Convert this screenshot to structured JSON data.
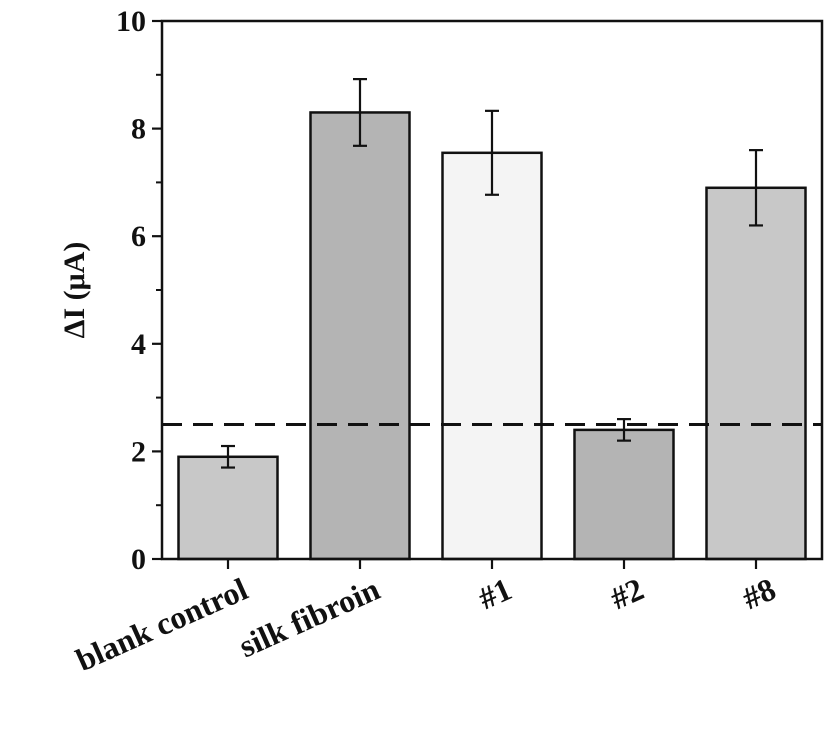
{
  "chart_data": {
    "type": "bar",
    "title": "",
    "xlabel": "",
    "ylabel": "ΔI (μA)",
    "ylim": [
      0,
      10
    ],
    "yticks": [
      0,
      2,
      4,
      6,
      8,
      10
    ],
    "categories": [
      "blank control",
      "silk fibroin",
      "#1",
      "#2",
      "#8"
    ],
    "values": [
      1.9,
      8.3,
      7.55,
      2.4,
      6.9
    ],
    "errors": [
      0.2,
      0.62,
      0.78,
      0.2,
      0.7
    ],
    "bar_colors": [
      "#c8c8c8",
      "#b4b4b4",
      "#f4f4f4",
      "#b4b4b4",
      "#c8c8c8"
    ],
    "threshold_line": 2.5,
    "threshold_style": "dashed",
    "grid": false,
    "legend": "none"
  }
}
